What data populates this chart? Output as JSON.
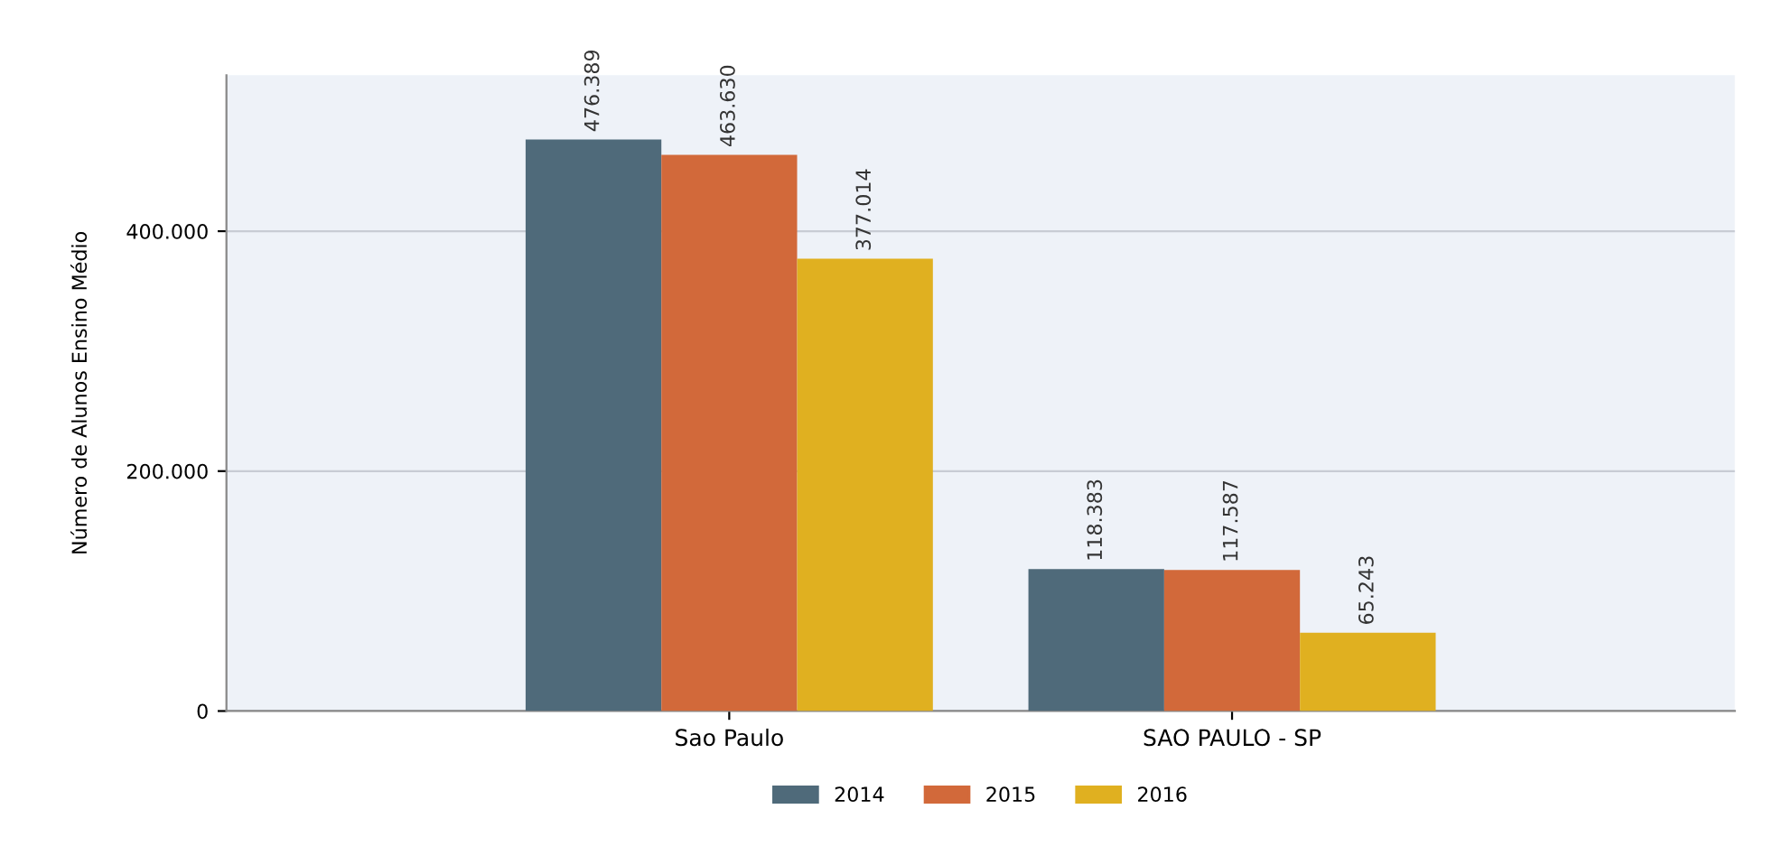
{
  "chart_data": {
    "type": "bar",
    "ylabel": "Número de Alunos Ensino Médio",
    "categories": [
      "Sao Paulo",
      "SAO PAULO - SP"
    ],
    "series": [
      {
        "name": "2014",
        "color": "#4f6a7a",
        "values": [
          476389,
          118383
        ],
        "value_labels": [
          "476.389",
          "118.383"
        ]
      },
      {
        "name": "2015",
        "color": "#d2693a",
        "values": [
          463630,
          117587
        ],
        "value_labels": [
          "463.630",
          "117.587"
        ]
      },
      {
        "name": "2016",
        "color": "#e0b020",
        "values": [
          377014,
          65243
        ],
        "value_labels": [
          "377.014",
          "65.243"
        ]
      }
    ],
    "ylim": [
      0,
      530000
    ],
    "yticks": [
      0,
      {
        "value": 200000,
        "label": "200.000"
      },
      {
        "value": 400000,
        "label": "400.000"
      }
    ],
    "grid": "y",
    "legend": "bottom"
  }
}
